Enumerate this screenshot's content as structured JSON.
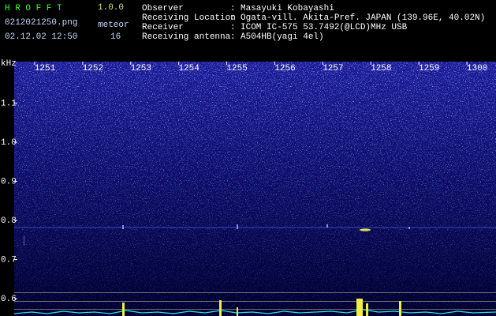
{
  "header": {
    "program": "H R O F F T",
    "version": "1.0.0",
    "file": "0212021250.png",
    "meteor_label": "meteor",
    "datetime": "02.12.02 12:50",
    "meteor_count": 16,
    "separator": ":",
    "fields": [
      {
        "label": "Observer",
        "value": "Masayuki Kobayashi"
      },
      {
        "label": "Receiving Location",
        "value": "Ogata-vill. Akita-Pref. JAPAN (139.96E, 40.02N)"
      },
      {
        "label": "Receiver",
        "value": "ICOM IC-575 53.7492(@LCD)MHz USB"
      },
      {
        "label": "Receiving antenna",
        "value": "A504HB(yagi 4el)"
      }
    ]
  },
  "chart_data": {
    "type": "spectrogram",
    "y_label": "kHz",
    "x_tick_labels": [
      "1251",
      "1252",
      "1253",
      "1254",
      "1255",
      "1256",
      "1257",
      "1258",
      "1259",
      "1300"
    ],
    "ylim": [
      0.556,
      1.206
    ],
    "yticks": [
      1.1,
      {
        "value": 1,
        "label": "1.0"
      },
      0.9,
      0.8,
      0.7,
      0.6
    ]
  }
}
